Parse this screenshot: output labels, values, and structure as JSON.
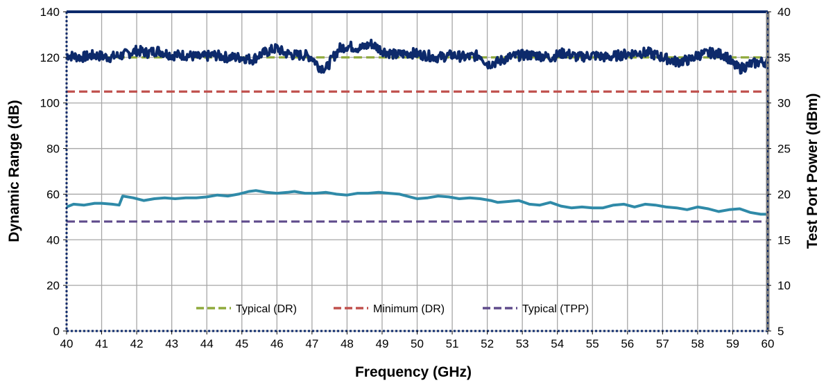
{
  "chart_data": {
    "type": "line",
    "title": "",
    "xlabel": "Frequency (GHz)",
    "ylabel_left": "Dynamic Range (dB)",
    "ylabel_right": "Test Port Power (dBm)",
    "xlim": [
      40,
      60
    ],
    "ylim_left": [
      0,
      140
    ],
    "ylim_right": [
      5,
      40
    ],
    "x_ticks": [
      "40",
      "41",
      "42",
      "43",
      "44",
      "45",
      "46",
      "47",
      "48",
      "49",
      "50",
      "51",
      "52",
      "53",
      "54",
      "55",
      "56",
      "57",
      "58",
      "59",
      "60"
    ],
    "y_left_ticks": [
      "0",
      "20",
      "40",
      "60",
      "80",
      "100",
      "120",
      "140"
    ],
    "y_right_ticks": [
      "5",
      "10",
      "15",
      "20",
      "25",
      "30",
      "35",
      "40"
    ],
    "grid": true,
    "legend_position": "bottom-center",
    "legend": [
      {
        "label": "Typical (DR)",
        "color": "#8faa3c",
        "dash": true
      },
      {
        "label": "Minimum (DR)",
        "color": "#c0504d",
        "dash": true
      },
      {
        "label": "Typical (TPP)",
        "color": "#5f4b8b",
        "dash": true
      }
    ],
    "series": [
      {
        "axis": "left",
        "color": "#0d2a6b",
        "x": [
          40.0,
          40.4,
          40.8,
          41.2,
          41.6,
          42.0,
          42.3,
          42.6,
          43.0,
          43.4,
          43.8,
          44.2,
          44.6,
          45.0,
          45.3,
          45.5,
          45.8,
          46.0,
          46.2,
          46.5,
          46.8,
          47.0,
          47.2,
          47.4,
          47.6,
          47.8,
          48.0,
          48.4,
          48.7,
          49.0,
          49.4,
          49.8,
          50.2,
          50.6,
          51.0,
          51.4,
          51.8,
          52.0,
          52.3,
          52.6,
          53.0,
          53.4,
          53.8,
          54.2,
          54.6,
          55.0,
          55.4,
          55.8,
          56.2,
          56.6,
          57.0,
          57.4,
          57.8,
          58.0,
          58.4,
          58.8,
          59.0,
          59.2,
          59.5,
          59.8,
          60.0
        ],
        "y": [
          121,
          120,
          121,
          120,
          121,
          123,
          122,
          123,
          121,
          121,
          120,
          121,
          120,
          120,
          119,
          121,
          123,
          124,
          122,
          121,
          121,
          120,
          116,
          115,
          120,
          124,
          125,
          124,
          126,
          123,
          121,
          122,
          121,
          120,
          121,
          120,
          121,
          117,
          118,
          120,
          121,
          121,
          120,
          122,
          120,
          121,
          120,
          121,
          122,
          122,
          120,
          118,
          119,
          121,
          122,
          121,
          117,
          115,
          117,
          118,
          118
        ]
      },
      {
        "axis": "right",
        "color": "#2f8aa8",
        "x": [
          40.0,
          40.2,
          40.5,
          40.8,
          41.0,
          41.3,
          41.5,
          41.6,
          41.9,
          42.2,
          42.5,
          42.8,
          43.1,
          43.4,
          43.7,
          44.0,
          44.3,
          44.6,
          44.9,
          45.2,
          45.4,
          45.7,
          46.0,
          46.3,
          46.5,
          46.8,
          47.1,
          47.4,
          47.7,
          48.0,
          48.3,
          48.6,
          48.9,
          49.2,
          49.5,
          49.8,
          50.0,
          50.3,
          50.6,
          50.9,
          51.2,
          51.5,
          51.8,
          52.1,
          52.3,
          52.6,
          52.9,
          53.2,
          53.5,
          53.8,
          54.1,
          54.4,
          54.7,
          55.0,
          55.3,
          55.6,
          55.9,
          56.2,
          56.5,
          56.8,
          57.1,
          57.4,
          57.7,
          58.0,
          58.3,
          58.6,
          58.9,
          59.2,
          59.5,
          59.8,
          60.0
        ],
        "y": [
          18.6,
          18.9,
          18.8,
          19.0,
          19.0,
          18.9,
          18.8,
          19.8,
          19.6,
          19.3,
          19.5,
          19.6,
          19.5,
          19.6,
          19.6,
          19.7,
          19.9,
          19.8,
          20.0,
          20.3,
          20.4,
          20.2,
          20.1,
          20.2,
          20.3,
          20.1,
          20.1,
          20.2,
          20.0,
          19.9,
          20.1,
          20.1,
          20.2,
          20.1,
          20.0,
          19.7,
          19.5,
          19.6,
          19.8,
          19.7,
          19.5,
          19.6,
          19.5,
          19.3,
          19.1,
          19.2,
          19.3,
          18.9,
          18.8,
          19.1,
          18.7,
          18.5,
          18.6,
          18.5,
          18.5,
          18.8,
          18.9,
          18.6,
          18.9,
          18.8,
          18.6,
          18.5,
          18.3,
          18.6,
          18.4,
          18.1,
          18.3,
          18.4,
          18.0,
          17.8,
          17.8
        ]
      }
    ],
    "reference_lines": [
      {
        "name": "Typical (DR)",
        "axis": "left",
        "value": 120,
        "color": "#8faa3c"
      },
      {
        "name": "Minimum (DR)",
        "axis": "left",
        "value": 105,
        "color": "#c0504d"
      },
      {
        "name": "Typical (TPP)",
        "axis": "right",
        "value": 17,
        "color": "#5f4b8b"
      }
    ]
  }
}
